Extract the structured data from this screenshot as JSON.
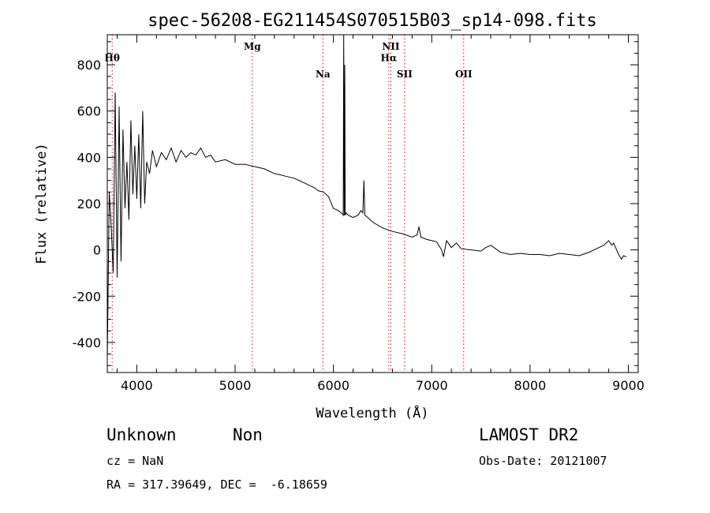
{
  "chart_data": {
    "type": "line",
    "title": "spec-56208-EG211454S070515B03_sp14-098.fits",
    "xlabel": "Wavelength (Å)",
    "ylabel": "Flux (relative)",
    "xlim": [
      3700,
      9100
    ],
    "ylim": [
      -530,
      930
    ],
    "xticks": [
      4000,
      5000,
      6000,
      7000,
      8000,
      9000
    ],
    "yticks": [
      -400,
      -200,
      0,
      200,
      400,
      600,
      800
    ],
    "grid": false,
    "series": [
      {
        "x": [
          3700,
          3720,
          3740,
          3760,
          3780,
          3800,
          3820,
          3840,
          3860,
          3880,
          3900,
          3920,
          3940,
          3960,
          3980,
          4000,
          4020,
          4040,
          4060,
          4080,
          4100,
          4130,
          4160,
          4200,
          4250,
          4300,
          4350,
          4400,
          4450,
          4500,
          4550,
          4600,
          4650,
          4700,
          4750,
          4800,
          4900,
          5000,
          5100,
          5200,
          5300,
          5400,
          5500,
          5600,
          5700,
          5800,
          5850,
          5900,
          5950,
          6000,
          6050,
          6080,
          6100,
          6105,
          6110,
          6115,
          6120,
          6130,
          6150,
          6200,
          6250,
          6280,
          6300,
          6310,
          6320,
          6350,
          6400,
          6500,
          6600,
          6700,
          6800,
          6850,
          6870,
          6890,
          6950,
          7000,
          7050,
          7100,
          7120,
          7150,
          7200,
          7250,
          7300,
          7400,
          7500,
          7550,
          7600,
          7650,
          7700,
          7800,
          7900,
          8000,
          8100,
          8200,
          8300,
          8400,
          8500,
          8600,
          8700,
          8750,
          8800,
          8830,
          8850,
          8880,
          8900,
          8930,
          8950,
          8980
        ],
        "y": [
          -480,
          250,
          100,
          -100,
          680,
          -120,
          620,
          -50,
          520,
          180,
          380,
          130,
          560,
          240,
          450,
          220,
          500,
          180,
          600,
          200,
          380,
          330,
          430,
          360,
          420,
          390,
          440,
          380,
          430,
          400,
          420,
          410,
          440,
          400,
          410,
          380,
          390,
          370,
          370,
          360,
          350,
          330,
          320,
          310,
          290,
          270,
          255,
          250,
          230,
          180,
          170,
          160,
          150,
          930,
          150,
          800,
          150,
          160,
          150,
          140,
          150,
          170,
          160,
          300,
          150,
          140,
          120,
          95,
          80,
          70,
          55,
          65,
          100,
          55,
          45,
          40,
          35,
          0,
          -30,
          40,
          10,
          30,
          5,
          0,
          -5,
          10,
          20,
          5,
          -10,
          -20,
          -15,
          -20,
          -20,
          -25,
          -15,
          -20,
          -25,
          -10,
          10,
          20,
          40,
          20,
          30,
          0,
          -20,
          -40,
          -25,
          -30
        ]
      }
    ],
    "lines": [
      {
        "label": "Hθ",
        "x": 3750,
        "label_y": 815
      },
      {
        "label": "Mg",
        "x": 5175,
        "label_y": 865
      },
      {
        "label": "Na",
        "x": 5893,
        "label_y": 745
      },
      {
        "label": "NII",
        "x": 6584,
        "label_y": 865
      },
      {
        "label": "Hα",
        "x": 6563,
        "label_y": 815
      },
      {
        "label": "SII",
        "x": 6724,
        "label_y": 745
      },
      {
        "label": "OII",
        "x": 7325,
        "label_y": 745
      }
    ]
  },
  "info": {
    "class": "Unknown",
    "subclass": "Non",
    "survey": "LAMOST DR2",
    "cz": "cz = NaN",
    "obs_date": "Obs-Date: 20121007",
    "coords": "RA = 317.39649, DEC =  -6.18659"
  },
  "colors": {
    "axis": "#000000",
    "spectrum": "#000000",
    "line_marker": "#ff0000"
  }
}
